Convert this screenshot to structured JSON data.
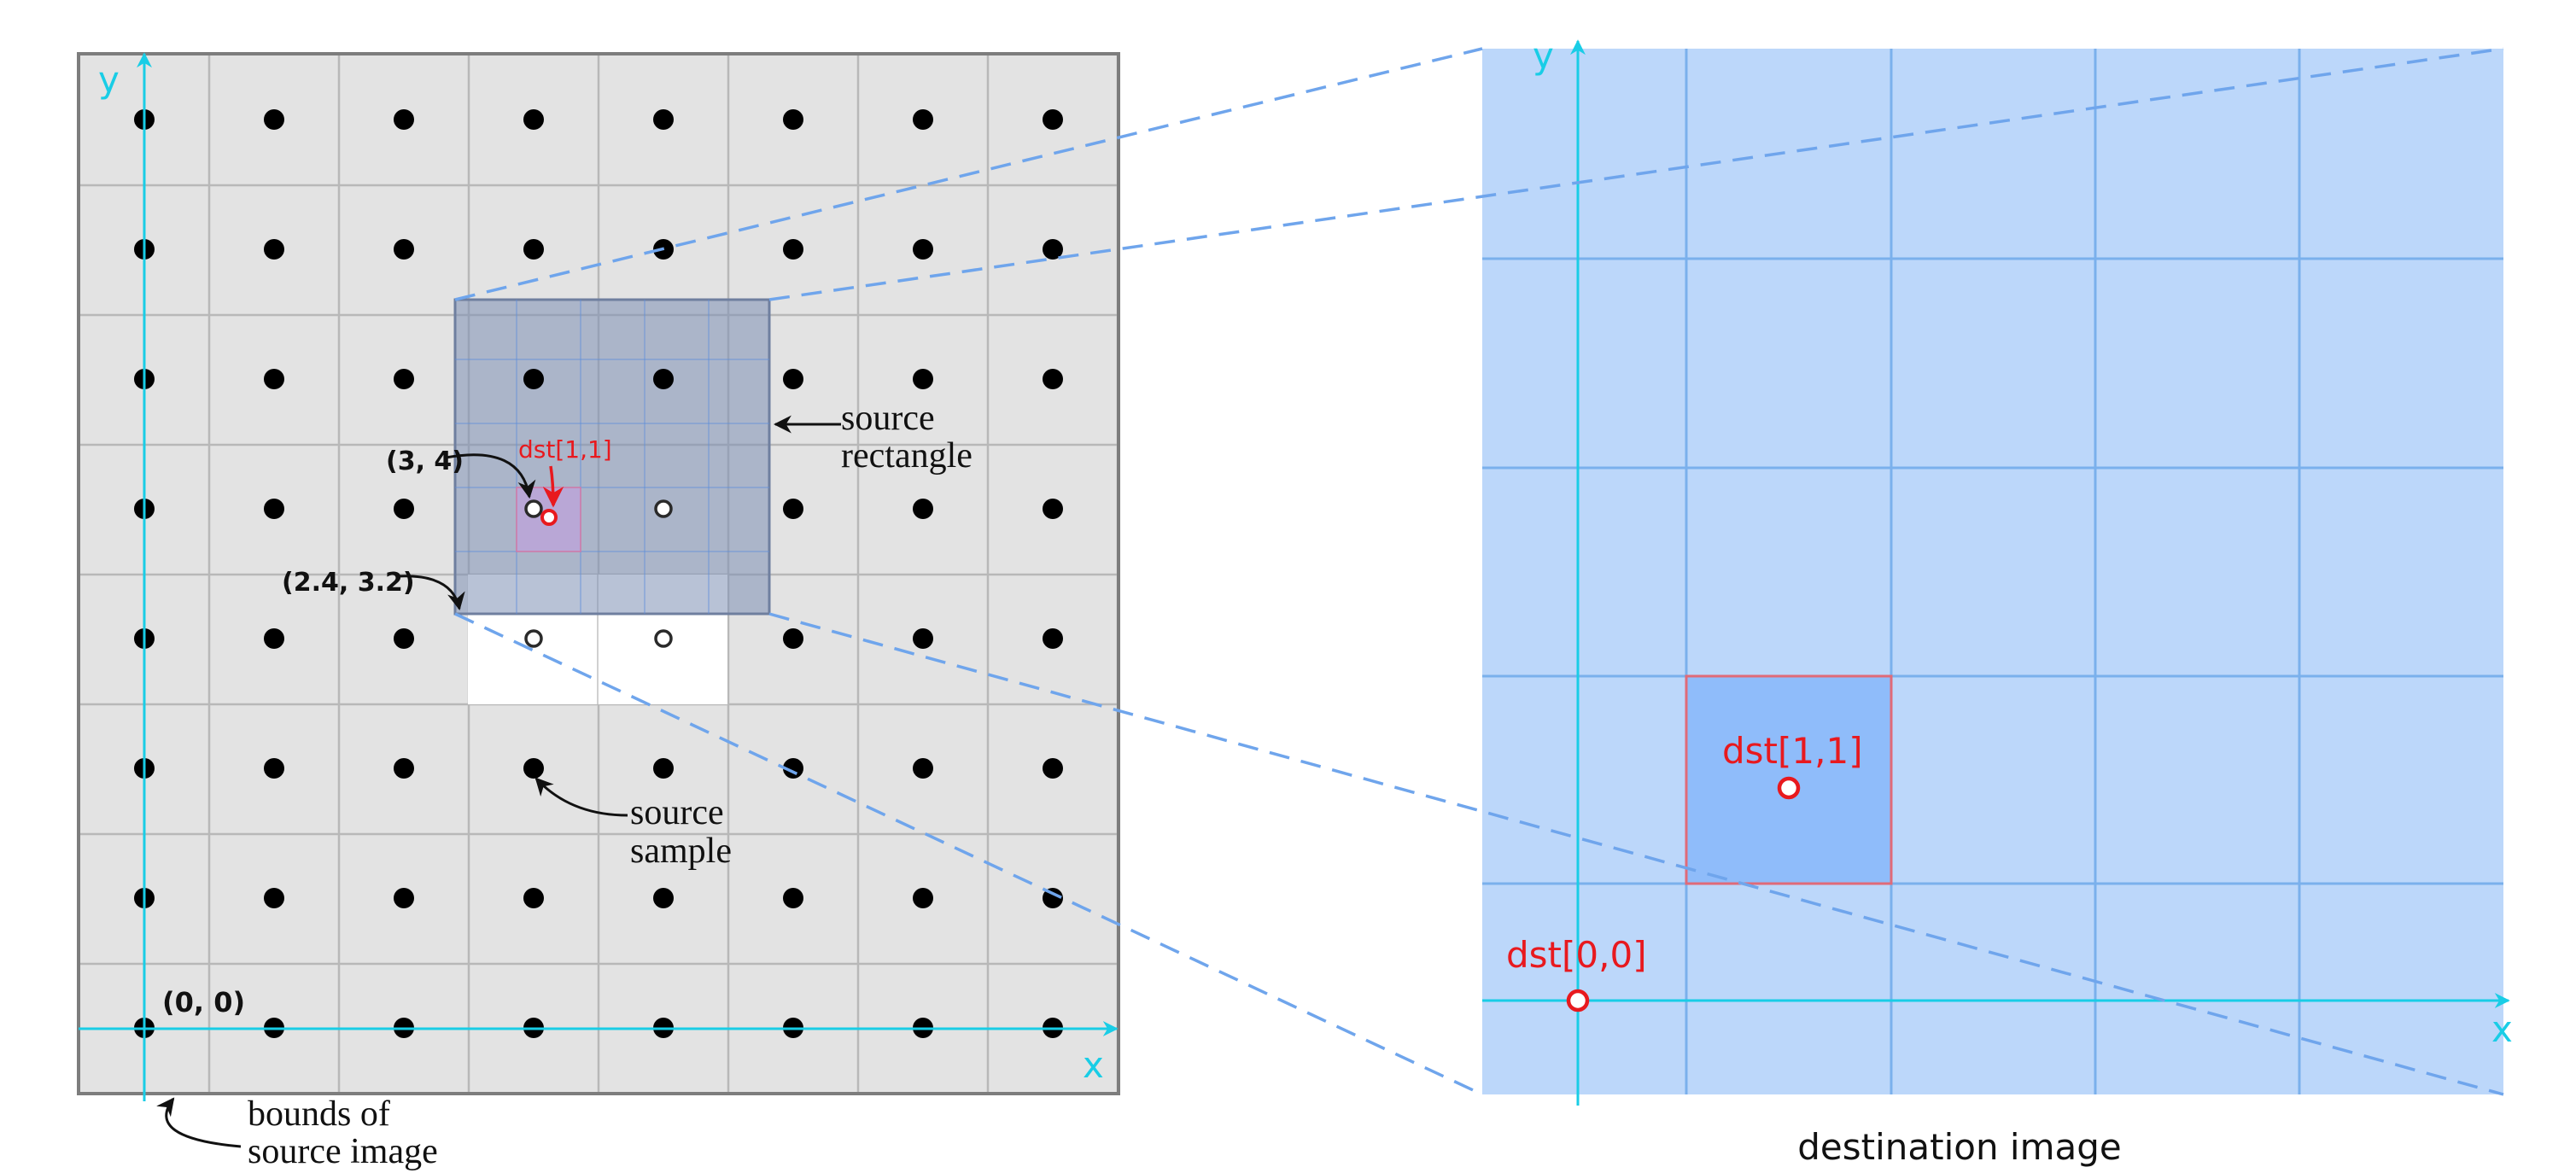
{
  "colors": {
    "axis": "#19cde6",
    "source_bg": "#e3e3e3",
    "source_grid": "#b8b8b8",
    "source_border": "#7d7d7d",
    "source_rect_fill": "#7d8fb5",
    "dest_bg": "#bcd7fa",
    "dest_grid": "#7ab0ec",
    "dest_cell_fill": "#8fbcfa",
    "red": "#e8191e",
    "dash": "#6fa5ec",
    "sample": "#000000",
    "label": "#111111"
  },
  "source_image": {
    "axis_x_label": "x",
    "axis_y_label": "y",
    "origin_label": "(0, 0)",
    "bounds_label_line1": "bounds of",
    "bounds_label_line2": "source image",
    "source_rect_label_line1": "source",
    "source_rect_label_line2": "rectangle",
    "sample_label_line1": "source",
    "sample_label_line2": "sample",
    "point_a_label": "(3, 4)",
    "point_b_label": "(2.4, 3.2)",
    "dst_point_label": "dst[1,1]"
  },
  "destination_image": {
    "caption": "destination image",
    "axis_x_label": "x",
    "axis_y_label": "y",
    "dst00_label": "dst[0,0]",
    "dst11_label": "dst[1,1]"
  }
}
